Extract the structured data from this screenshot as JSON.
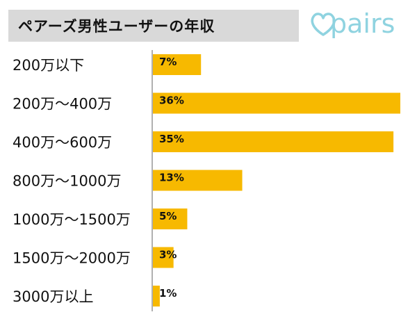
{
  "title": "ペアーズ男性ユーザーの年収",
  "logo": {
    "text": "pairs",
    "icon": "heart-outline-icon",
    "color": "#8fd3e0"
  },
  "colors": {
    "bar": "#f7b900",
    "axis": "#b0b0b0",
    "header_bg": "#d9d9d9"
  },
  "chart_data": {
    "type": "bar",
    "orientation": "horizontal",
    "categories": [
      "200万以下",
      "200万〜400万",
      "400万〜600万",
      "800万〜1000万",
      "1000万〜1500万",
      "1500万〜2000万",
      "3000万以上"
    ],
    "values": [
      7,
      36,
      35,
      13,
      5,
      3,
      1
    ],
    "value_labels": [
      "7%",
      "36%",
      "35%",
      "13%",
      "5%",
      "3%",
      "1%"
    ],
    "unit": "%",
    "xlim": [
      0,
      36
    ]
  }
}
